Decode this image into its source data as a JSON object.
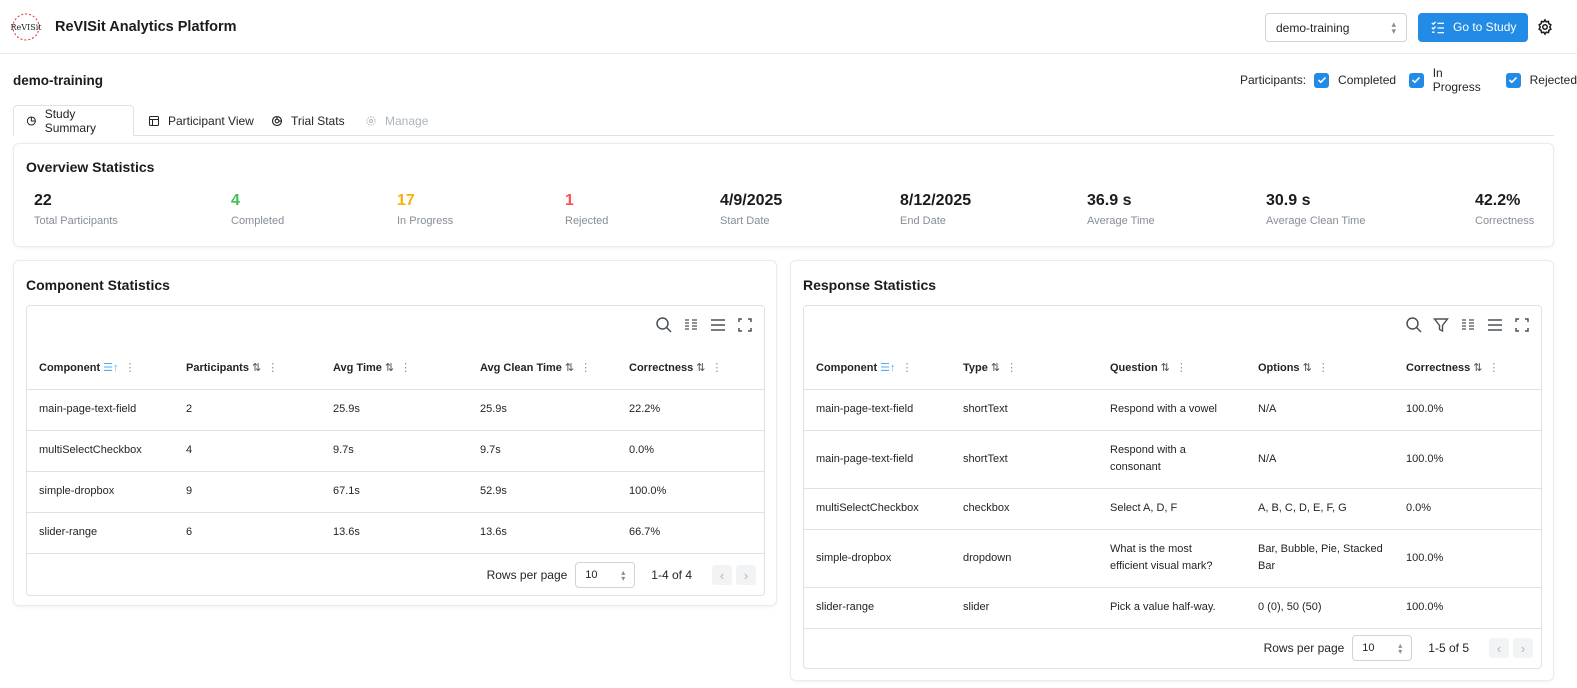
{
  "header": {
    "app_title": "ReVISit Analytics Platform",
    "logo_text": "ReVISit",
    "study_select_value": "demo-training",
    "go_to_study_label": "Go to Study"
  },
  "subheader": {
    "study_name": "demo-training",
    "participants_label": "Participants:",
    "filters": [
      {
        "label": "Completed",
        "checked": true
      },
      {
        "label": "In Progress",
        "checked": true
      },
      {
        "label": "Rejected",
        "checked": true
      }
    ]
  },
  "tabs": [
    {
      "label": "Study Summary",
      "icon": "chart-pie-icon",
      "active": true
    },
    {
      "label": "Participant View",
      "icon": "table-icon",
      "active": false
    },
    {
      "label": "Trial Stats",
      "icon": "chart-donut-icon",
      "active": false
    },
    {
      "label": "Manage",
      "icon": "settings-icon",
      "disabled": true
    }
  ],
  "overview": {
    "title": "Overview Statistics",
    "stats": [
      {
        "value": "22",
        "label": "Total Participants",
        "color": "#1a1b1e"
      },
      {
        "value": "4",
        "label": "Completed",
        "color": "#40c057"
      },
      {
        "value": "17",
        "label": "In Progress",
        "color": "#fab005"
      },
      {
        "value": "1",
        "label": "Rejected",
        "color": "#fa5252"
      },
      {
        "value": "4/9/2025",
        "label": "Start Date",
        "color": "#1a1b1e"
      },
      {
        "value": "8/12/2025",
        "label": "End Date",
        "color": "#1a1b1e"
      },
      {
        "value": "36.9 s",
        "label": "Average Time",
        "color": "#1a1b1e"
      },
      {
        "value": "30.9 s",
        "label": "Average Clean Time",
        "color": "#1a1b1e"
      },
      {
        "value": "42.2%",
        "label": "Correctness",
        "color": "#1a1b1e"
      }
    ]
  },
  "component_stats": {
    "title": "Component Statistics",
    "columns": [
      "Component",
      "Participants",
      "Avg Time",
      "Avg Clean Time",
      "Correctness"
    ],
    "rows": [
      [
        "main-page-text-field",
        "2",
        "25.9s",
        "25.9s",
        "22.2%"
      ],
      [
        "multiSelectCheckbox",
        "4",
        "9.7s",
        "9.7s",
        "0.0%"
      ],
      [
        "simple-dropbox",
        "9",
        "67.1s",
        "52.9s",
        "100.0%"
      ],
      [
        "slider-range",
        "6",
        "13.6s",
        "13.6s",
        "66.7%"
      ]
    ],
    "rows_per_page_label": "Rows per page",
    "rows_per_page": "10",
    "range": "1-4 of 4"
  },
  "response_stats": {
    "title": "Response Statistics",
    "columns": [
      "Component",
      "Type",
      "Question",
      "Options",
      "Correctness"
    ],
    "rows": [
      [
        "main-page-text-field",
        "shortText",
        "Respond with a vowel",
        "N/A",
        "100.0%"
      ],
      [
        "main-page-text-field",
        "shortText",
        "Respond with a consonant",
        "N/A",
        "100.0%"
      ],
      [
        "multiSelectCheckbox",
        "checkbox",
        "Select A, D, F",
        "A, B, C, D, E, F, G",
        "0.0%"
      ],
      [
        "simple-dropbox",
        "dropdown",
        "What is the most efficient visual mark?",
        "Bar, Bubble, Pie, Stacked Bar",
        "100.0%"
      ],
      [
        "slider-range",
        "slider",
        "Pick a value half-way.",
        "0 (0), 50 (50)",
        "100.0%"
      ]
    ],
    "rows_per_page_label": "Rows per page",
    "rows_per_page": "10",
    "range": "1-5 of 5"
  },
  "colors": {
    "accent": "#228be6",
    "completed": "#40c057",
    "in_progress": "#fab005",
    "rejected": "#fa5252"
  }
}
